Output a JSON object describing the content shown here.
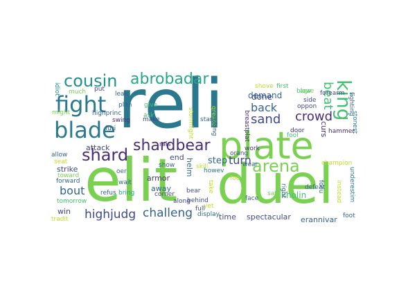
{
  "wordcloud": {
    "palette": {
      "purple": "#472c7a",
      "indigo": "#3f4788",
      "blue": "#33638d",
      "steel": "#2a788e",
      "teal": "#21908d",
      "green": "#22a884",
      "mint": "#43bf71",
      "lime": "#7ad151",
      "chartreuse": "#bddf26",
      "yellow": "#fde725"
    },
    "words": [
      {
        "id": "reli",
        "text": "reli",
        "color": "#2a788e"
      },
      {
        "id": "elit",
        "text": "elit",
        "color": "#7ad151"
      },
      {
        "id": "duel",
        "text": "duel",
        "color": "#7ad151"
      },
      {
        "id": "plate",
        "text": "plate",
        "color": "#7ad151"
      },
      {
        "id": "fight",
        "text": "fight",
        "color": "#2a788e"
      },
      {
        "id": "blade",
        "text": "blade",
        "color": "#2a788e"
      },
      {
        "id": "cousin",
        "text": "cousin",
        "color": "#21908d"
      },
      {
        "id": "abrobadar",
        "text": "abrobadar",
        "color": "#22a884"
      },
      {
        "id": "shardbear",
        "text": "shardbear",
        "color": "#472c7a"
      },
      {
        "id": "shard",
        "text": "shard",
        "color": "#472c7a"
      },
      {
        "id": "arena",
        "text": "arena",
        "color": "#7ad151"
      },
      {
        "id": "king",
        "text": "king",
        "color": "#43bf71"
      },
      {
        "id": "beat",
        "text": "beat",
        "color": "#43bf71"
      },
      {
        "id": "crowd",
        "text": "crowd",
        "color": "#472c7a"
      },
      {
        "id": "sand",
        "text": "sand",
        "color": "#3f4788"
      },
      {
        "id": "back",
        "text": "back",
        "color": "#33638d"
      },
      {
        "id": "turn",
        "text": "turn",
        "color": "#3f4788"
      },
      {
        "id": "step",
        "text": "step",
        "color": "#33638d"
      },
      {
        "id": "highjudg",
        "text": "highjudg",
        "color": "#3f4788"
      },
      {
        "id": "challeng",
        "text": "challeng",
        "color": "#33638d"
      },
      {
        "id": "bout",
        "text": "bout",
        "color": "#33638d"
      },
      {
        "id": "demand",
        "text": "demand",
        "color": "#33638d"
      },
      {
        "id": "done",
        "text": "done",
        "color": "#3f4788"
      },
      {
        "id": "end",
        "text": "end",
        "color": "#3f4788"
      },
      {
        "id": "helm",
        "text": "helm",
        "color": "#33638d"
      },
      {
        "id": "armor",
        "text": "armor",
        "color": "#472c7a"
      },
      {
        "id": "away",
        "text": "away",
        "color": "#33638d"
      },
      {
        "id": "attack",
        "text": "attack",
        "color": "#3f4788"
      },
      {
        "id": "strike",
        "text": "strike",
        "color": "#3f4788"
      },
      {
        "id": "win",
        "text": "win",
        "color": "#3f4788"
      },
      {
        "id": "time",
        "text": "time",
        "color": "#3f4788"
      },
      {
        "id": "spectacular",
        "text": "spectacular",
        "color": "#3f4788"
      },
      {
        "id": "erannivar",
        "text": "erannivar",
        "color": "#33638d"
      },
      {
        "id": "curs",
        "text": "curs",
        "color": "#472c7a"
      },
      {
        "id": "kholin",
        "text": "kholin",
        "color": "#43bf71"
      },
      {
        "id": "agre",
        "text": "agre",
        "color": "#7ad151"
      },
      {
        "id": "forearm",
        "text": "forearm",
        "color": "#3f4788"
      },
      {
        "id": "fighting",
        "text": "fighting",
        "color": "#33638d"
      },
      {
        "id": "stonest",
        "text": "stonest",
        "color": "#2a788e"
      },
      {
        "id": "hammer",
        "text": "hammer",
        "color": "#472c7a"
      },
      {
        "id": "champion",
        "text": "champion",
        "color": "#bddf26"
      },
      {
        "id": "underestim",
        "text": "underestim",
        "color": "#2a788e"
      },
      {
        "id": "foot",
        "text": "foot",
        "color": "#33638d"
      },
      {
        "id": "instead",
        "text": "instead",
        "color": "#bddf26"
      },
      {
        "id": "focu",
        "text": "focu",
        "color": "#33638d"
      },
      {
        "id": "defeat",
        "text": "defeat",
        "color": "#33638d"
      },
      {
        "id": "door",
        "text": "door",
        "color": "#472c7a"
      },
      {
        "id": "fool",
        "text": "fool",
        "color": "#43bf71"
      },
      {
        "id": "side",
        "text": "side",
        "color": "#3f4788"
      },
      {
        "id": "blow",
        "text": "blow",
        "color": "#43bf71"
      },
      {
        "id": "oppon",
        "text": "oppon",
        "color": "#3f4788"
      },
      {
        "id": "first",
        "text": "first",
        "color": "#43bf71"
      },
      {
        "id": "shove",
        "text": "shove",
        "color": "#bddf26"
      },
      {
        "id": "breastplat",
        "text": "breastplat",
        "color": "#472c7a"
      },
      {
        "id": "orang",
        "text": "orang",
        "color": "#3f4788"
      },
      {
        "id": "work",
        "text": "work",
        "color": "#472c7a"
      },
      {
        "id": "wear",
        "text": "wear",
        "color": "#33638d"
      },
      {
        "id": "sat",
        "text": "sat",
        "color": "#7ad151"
      },
      {
        "id": "face",
        "text": "face",
        "color": "#33638d"
      },
      {
        "id": "right",
        "text": "right",
        "color": "#33638d"
      },
      {
        "id": "take",
        "text": "take",
        "color": "#bddf26"
      },
      {
        "id": "foe",
        "text": "foe",
        "color": "#bddf26"
      },
      {
        "id": "greater",
        "text": "greater",
        "color": "#bddf26"
      },
      {
        "id": "long",
        "text": "long",
        "color": "#33638d"
      },
      {
        "id": "stanc",
        "text": "stanc",
        "color": "#33638d"
      },
      {
        "id": "stormlight",
        "text": "stormlight",
        "color": "#bddf26"
      },
      {
        "id": "give",
        "text": "give",
        "color": "#43bf71"
      },
      {
        "id": "ask",
        "text": "ask",
        "color": "#43bf71"
      },
      {
        "id": "rais",
        "text": "rais",
        "color": "#472c7a"
      },
      {
        "id": "show",
        "text": "show",
        "color": "#33638d"
      },
      {
        "id": "skill",
        "text": "skill",
        "color": "#bddf26"
      },
      {
        "id": "corner",
        "text": "corner",
        "color": "#3f4788"
      },
      {
        "id": "bear",
        "text": "bear",
        "color": "#3f4788"
      },
      {
        "id": "behind",
        "text": "behind",
        "color": "#3f4788"
      },
      {
        "id": "howev",
        "text": "howev",
        "color": "#2a788e"
      },
      {
        "id": "full",
        "text": "full",
        "color": "#3f4788"
      },
      {
        "id": "display",
        "text": "display",
        "color": "#33638d"
      },
      {
        "id": "along",
        "text": "along",
        "color": "#3f4788"
      },
      {
        "id": "yet",
        "text": "yet",
        "color": "#bddf26"
      },
      {
        "id": "idiot",
        "text": "idiot",
        "color": "#21908d"
      },
      {
        "id": "might",
        "text": "might",
        "color": "#7ad151"
      },
      {
        "id": "much",
        "text": "much",
        "color": "#7ad151"
      },
      {
        "id": "put",
        "text": "put",
        "color": "#3f4788"
      },
      {
        "id": "leak",
        "text": "leak",
        "color": "#33638d"
      },
      {
        "id": "plan",
        "text": "plan",
        "color": "#33638d"
      },
      {
        "id": "swing",
        "text": "swing",
        "color": "#472c7a"
      },
      {
        "id": "highprinc",
        "text": "highprinc",
        "color": "#33638d"
      },
      {
        "id": "furi",
        "text": "furi",
        "color": "#33638d"
      },
      {
        "id": "make",
        "text": "make",
        "color": "#3f4788"
      },
      {
        "id": "allow",
        "text": "allow",
        "color": "#33638d"
      },
      {
        "id": "seat",
        "text": "seat",
        "color": "#bddf26"
      },
      {
        "id": "oer",
        "text": "oer",
        "color": "#33638d"
      },
      {
        "id": "toward",
        "text": "toward",
        "color": "#7ad151"
      },
      {
        "id": "wait",
        "text": "wait",
        "color": "#33638d"
      },
      {
        "id": "forward",
        "text": "forward",
        "color": "#33638d"
      },
      {
        "id": "refus",
        "text": "refus",
        "color": "#33638d"
      },
      {
        "id": "bring",
        "text": "bring",
        "color": "#22a884"
      },
      {
        "id": "tomorrow",
        "text": "tomorrow",
        "color": "#43bf71"
      },
      {
        "id": "tradit",
        "text": "tradit",
        "color": "#bddf26"
      }
    ]
  }
}
